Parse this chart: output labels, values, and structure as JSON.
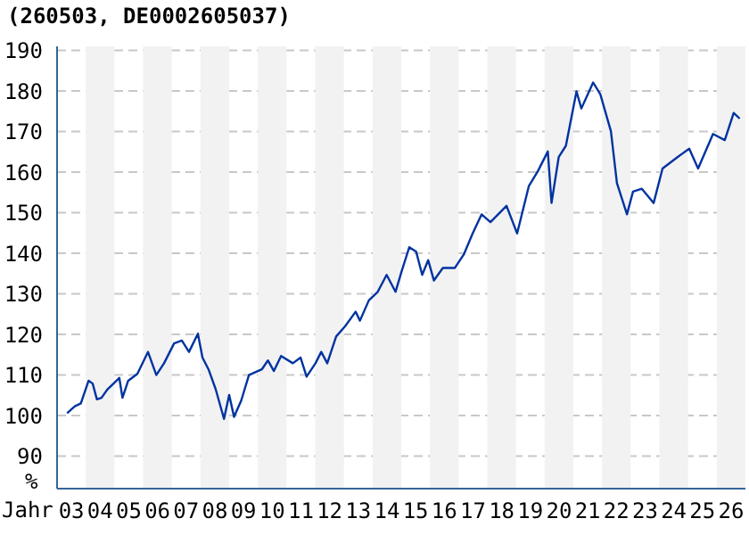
{
  "chart_data": {
    "type": "line",
    "title": "(260503, DE0002605037)",
    "xlabel": "Jahr",
    "ylabel": "%",
    "x": [
      2.85,
      3.12,
      3.33,
      3.43,
      3.6,
      3.74,
      3.89,
      4.05,
      4.26,
      4.67,
      4.78,
      4.98,
      5.3,
      5.67,
      5.96,
      6.23,
      6.58,
      6.85,
      7.1,
      7.41,
      7.57,
      7.78,
      8.03,
      8.32,
      8.5,
      8.67,
      8.92,
      9.19,
      9.64,
      9.85,
      10.06,
      10.31,
      10.72,
      10.99,
      11.2,
      11.51,
      11.71,
      11.92,
      12.23,
      12.54,
      12.91,
      13.06,
      13.37,
      13.68,
      13.99,
      14.3,
      14.51,
      14.78,
      15.02,
      15.23,
      15.44,
      15.64,
      15.95,
      16.37,
      16.68,
      16.99,
      17.3,
      17.61,
      18.17,
      18.54,
      18.95,
      19.26,
      19.61,
      19.74,
      19.99,
      20.24,
      20.61,
      20.78,
      21.19,
      21.44,
      21.81,
      22.02,
      22.37,
      22.58,
      22.89,
      23.3,
      23.61,
      24.13,
      24.54,
      24.85,
      25.37,
      25.78,
      26.09,
      26.3
    ],
    "series": [
      {
        "color": "#0033a0",
        "values": [
          100.6,
          102.3,
          103.0,
          105.1,
          108.6,
          107.9,
          104.0,
          104.4,
          106.5,
          109.3,
          104.4,
          108.6,
          110.3,
          115.7,
          110.0,
          112.9,
          117.8,
          118.5,
          115.7,
          120.2,
          114.3,
          111.4,
          106.5,
          99.2,
          105.1,
          99.7,
          103.7,
          110.0,
          111.4,
          113.6,
          111.0,
          114.7,
          112.9,
          114.3,
          109.6,
          112.9,
          115.7,
          112.9,
          119.5,
          122.0,
          125.6,
          123.4,
          128.4,
          130.5,
          134.7,
          130.5,
          135.5,
          141.5,
          140.4,
          134.7,
          138.3,
          133.3,
          136.4,
          136.4,
          139.7,
          144.9,
          149.6,
          147.7,
          151.7,
          144.9,
          156.6,
          160.2,
          165.1,
          152.4,
          163.7,
          166.5,
          179.9,
          175.7,
          182.1,
          179.2,
          170.1,
          157.3,
          149.6,
          155.2,
          155.9,
          152.4,
          160.9,
          163.7,
          165.8,
          160.9,
          169.4,
          167.9,
          174.6,
          173.2
        ]
      }
    ],
    "xlim": [
      2.5,
      26.5
    ],
    "xticks": [
      {
        "value": 3,
        "label": "03"
      },
      {
        "value": 4,
        "label": "04"
      },
      {
        "value": 5,
        "label": "05"
      },
      {
        "value": 6,
        "label": "06"
      },
      {
        "value": 7,
        "label": "07"
      },
      {
        "value": 8,
        "label": "08"
      },
      {
        "value": 9,
        "label": "09"
      },
      10,
      11,
      12,
      13,
      14,
      15,
      16,
      17,
      18,
      19,
      20,
      21,
      22,
      23,
      24,
      25,
      26
    ],
    "ylim": [
      82,
      191
    ],
    "yticks": [
      90,
      100,
      110,
      120,
      130,
      140,
      150,
      160,
      170,
      180,
      190
    ],
    "bands": [
      {
        "axis": "x",
        "from": 3.5,
        "to": 4.5,
        "color": "#f2f2f2"
      },
      {
        "axis": "x",
        "from": 5.5,
        "to": 6.5,
        "color": "#f2f2f2"
      },
      {
        "axis": "x",
        "from": 7.5,
        "to": 8.5,
        "color": "#f2f2f2"
      },
      {
        "axis": "x",
        "from": 9.5,
        "to": 10.5,
        "color": "#f2f2f2"
      },
      {
        "axis": "x",
        "from": 11.5,
        "to": 12.5,
        "color": "#f2f2f2"
      },
      {
        "axis": "x",
        "from": 13.5,
        "to": 14.5,
        "color": "#f2f2f2"
      },
      {
        "axis": "x",
        "from": 15.5,
        "to": 16.5,
        "color": "#f2f2f2"
      },
      {
        "axis": "x",
        "from": 17.5,
        "to": 18.5,
        "color": "#f2f2f2"
      },
      {
        "axis": "x",
        "from": 19.5,
        "to": 20.5,
        "color": "#f2f2f2"
      },
      {
        "axis": "x",
        "from": 21.5,
        "to": 22.5,
        "color": "#f2f2f2"
      },
      {
        "axis": "x",
        "from": 23.5,
        "to": 24.5,
        "color": "#f2f2f2"
      },
      {
        "axis": "x",
        "from": 25.5,
        "to": 26.5,
        "color": "#f2f2f2"
      }
    ],
    "grid": "y",
    "marker": "none",
    "line_style": "solid"
  }
}
